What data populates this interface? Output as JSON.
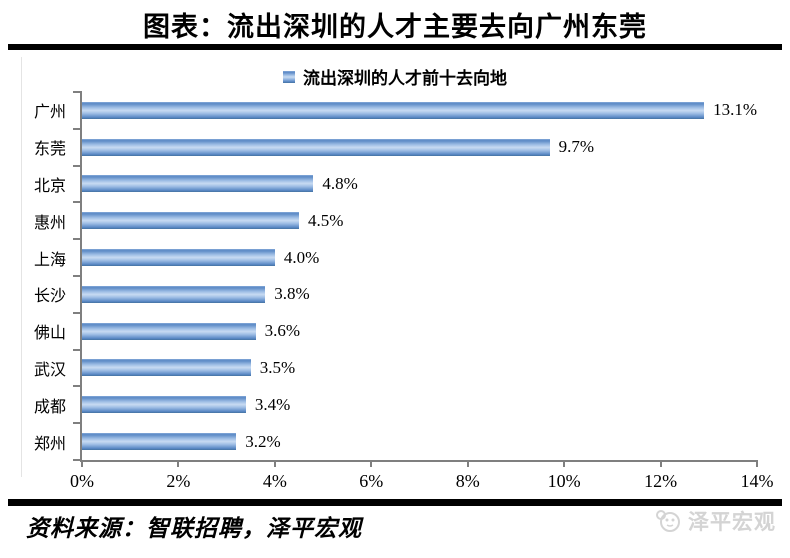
{
  "page": {
    "title": "图表：流出深圳的人才主要去向广州东莞",
    "footer_source": "资料来源：智联招聘，泽平宏观",
    "watermark": "泽平宏观"
  },
  "chart_data": {
    "type": "bar",
    "orientation": "horizontal",
    "title": "图表：流出深圳的人才主要去向广州东莞",
    "legend": "流出深圳的人才前十去向地",
    "legend_position": "top",
    "categories": [
      "广州",
      "东莞",
      "北京",
      "惠州",
      "上海",
      "长沙",
      "佛山",
      "武汉",
      "成都",
      "郑州"
    ],
    "values": [
      13.1,
      9.7,
      4.8,
      4.5,
      4.0,
      3.8,
      3.6,
      3.5,
      3.4,
      3.2
    ],
    "value_labels": [
      "13.1%",
      "9.7%",
      "4.8%",
      "4.5%",
      "4.0%",
      "3.8%",
      "3.6%",
      "3.5%",
      "3.4%",
      "3.2%"
    ],
    "x_ticks": [
      "0%",
      "2%",
      "4%",
      "6%",
      "8%",
      "10%",
      "12%",
      "14%"
    ],
    "xlim": [
      0,
      14
    ],
    "xlabel": "",
    "ylabel": "",
    "grid": false,
    "bar_color": "#4f81bd",
    "axis_color": "#7f7f7f",
    "text_color": "#000000",
    "watermark_color": "#d4d4d4"
  }
}
